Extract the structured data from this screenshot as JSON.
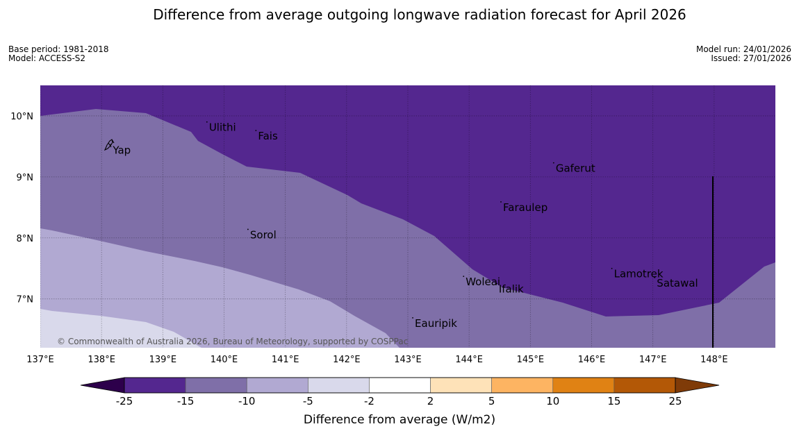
{
  "title": "Difference from average outgoing longwave radiation forecast for April 2026",
  "meta": {
    "base_period": "Base period: 1981-2018",
    "model": "Model: ACCESS-S2",
    "model_run": "Model run: 24/01/2026",
    "issued": "Issued: 27/01/2026"
  },
  "map": {
    "lon_range": [
      137,
      149
    ],
    "lat_range": [
      6.2,
      10.5
    ],
    "lon_ticks": [
      {
        "value": 137,
        "label": "137°E"
      },
      {
        "value": 138,
        "label": "138°E"
      },
      {
        "value": 139,
        "label": "139°E"
      },
      {
        "value": 140,
        "label": "140°E"
      },
      {
        "value": 141,
        "label": "141°E"
      },
      {
        "value": 142,
        "label": "142°E"
      },
      {
        "value": 143,
        "label": "143°E"
      },
      {
        "value": 144,
        "label": "144°E"
      },
      {
        "value": 145,
        "label": "145°E"
      },
      {
        "value": 146,
        "label": "146°E"
      },
      {
        "value": 147,
        "label": "147°E"
      },
      {
        "value": 148,
        "label": "148°E"
      }
    ],
    "lat_ticks": [
      {
        "value": 10,
        "label": "10°N"
      },
      {
        "value": 9,
        "label": "9°N"
      },
      {
        "value": 8,
        "label": "8°N"
      },
      {
        "value": 7,
        "label": "7°N"
      }
    ],
    "places": [
      {
        "name": "Yap",
        "lon": 138.15,
        "lat": 9.53
      },
      {
        "name": "Ulithi",
        "lon": 139.72,
        "lat": 9.9
      },
      {
        "name": "Fais",
        "lon": 140.52,
        "lat": 9.76
      },
      {
        "name": "Gaferut",
        "lon": 145.38,
        "lat": 9.23
      },
      {
        "name": "Faraulep",
        "lon": 144.52,
        "lat": 8.59
      },
      {
        "name": "Sorol",
        "lon": 140.39,
        "lat": 8.14
      },
      {
        "name": "Woleai",
        "lon": 143.91,
        "lat": 7.37
      },
      {
        "name": "Ifalik",
        "lon": 144.45,
        "lat": 7.25
      },
      {
        "name": "Lamotrek",
        "lon": 146.33,
        "lat": 7.5
      },
      {
        "name": "Satawal",
        "lon": 147.03,
        "lat": 7.35
      },
      {
        "name": "Eauripik",
        "lon": 143.08,
        "lat": 6.69
      }
    ],
    "copyright": "© Commonwealth of Australia 2026, Bureau of Meteorology, supported by COSPPac"
  },
  "colorbar": {
    "title": "Difference from average (W/m2)",
    "labels": [
      "-25",
      "-15",
      "-10",
      "-5",
      "-2",
      "2",
      "5",
      "10",
      "15",
      "25"
    ],
    "colors": [
      "#54278f",
      "#7f6fa8",
      "#b1a9d2",
      "#d9d9eb",
      "#ffffff",
      "#fee2b8",
      "#fdb462",
      "#e08214",
      "#b35806"
    ],
    "under_color": "#2d004b",
    "over_color": "#7f3b08"
  }
}
